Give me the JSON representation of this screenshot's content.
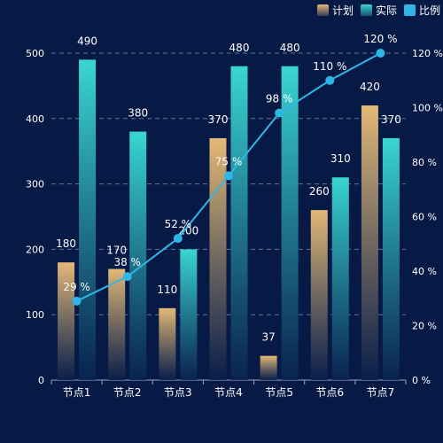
{
  "chart_data": {
    "type": "bar",
    "categories": [
      "节点1",
      "节点2",
      "节点3",
      "节点4",
      "节点5",
      "节点6",
      "节点7"
    ],
    "series": [
      {
        "name": "计划",
        "type": "bar",
        "values": [
          180,
          170,
          110,
          370,
          37,
          260,
          420
        ]
      },
      {
        "name": "实际",
        "type": "bar",
        "values": [
          490,
          380,
          200,
          480,
          480,
          310,
          370
        ]
      },
      {
        "name": "比例",
        "type": "line",
        "values": [
          29,
          38,
          52,
          75,
          98,
          110,
          120
        ]
      }
    ],
    "y_left": {
      "ticks": [
        0,
        100,
        200,
        300,
        400,
        500
      ],
      "ylim": [
        0,
        500
      ]
    },
    "y_right": {
      "ticks": [
        0,
        20,
        40,
        60,
        80,
        100,
        120
      ],
      "ylim": [
        0,
        120
      ],
      "unit": " %"
    },
    "grid": true,
    "legend_position": "top-right",
    "colors": {
      "background": "#061a45",
      "plan_top": "#e3b978",
      "plan_bottom": "#0a1f4a",
      "actual_top": "#39d6d2",
      "actual_bottom": "#0a2452",
      "line": "#2fb6e6",
      "text": "#ffffff"
    }
  }
}
